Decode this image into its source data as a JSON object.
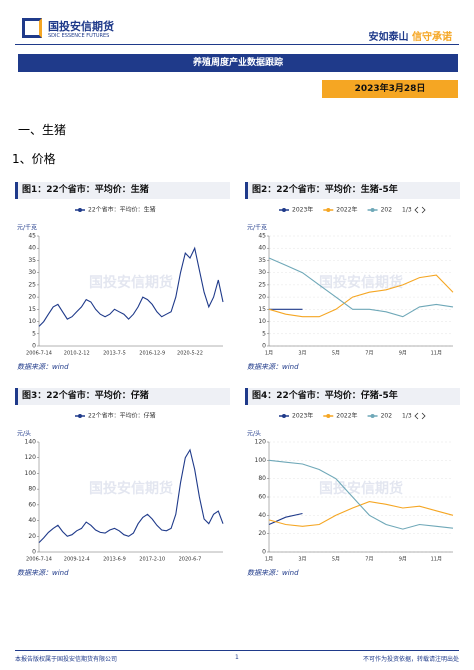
{
  "header": {
    "logo": "国投安信期货",
    "logo_en": "SDIC ESSENCE FUTURES",
    "slogan_a": "安如泰山",
    "slogan_b": "信守承诺",
    "banner": "养殖周度产业数据跟踪",
    "date": "2023年3月28日",
    "watermark": "国投安信期货"
  },
  "section": "一、生猪",
  "subsection": "1、价格",
  "chart_data": [
    {
      "type": "line",
      "title": "图1：22个省市：平均价：生猪",
      "y_label": "元/千克",
      "source": "数据来源：wind",
      "categories": [
        "2006-7-14",
        null,
        null,
        null,
        null,
        null,
        null,
        null,
        "2010-2-12",
        null,
        null,
        null,
        null,
        null,
        null,
        null,
        "2013-7-5",
        null,
        null,
        null,
        null,
        null,
        null,
        null,
        "2016-12-9",
        null,
        null,
        null,
        null,
        null,
        null,
        null,
        "2020-5-22",
        null,
        null,
        null,
        null,
        null,
        null,
        null
      ],
      "series": [
        {
          "name": "22个省市：平均价：生猪",
          "color": "#1f3a8a",
          "values": [
            8,
            10,
            13,
            16,
            17,
            14,
            11,
            12,
            14,
            16,
            19,
            18,
            15,
            13,
            12,
            13,
            15,
            14,
            13,
            11,
            13,
            16,
            20,
            19,
            17,
            14,
            12,
            13,
            14,
            20,
            30,
            38,
            36,
            40,
            31,
            22,
            16,
            20,
            27,
            18
          ]
        }
      ],
      "ylim": [
        0,
        45
      ],
      "yticks": [
        0,
        5,
        10,
        15,
        20,
        25,
        30,
        35,
        40,
        45
      ]
    },
    {
      "type": "line",
      "title": "图2：22个省市：平均价：生猪-5年",
      "y_label": "元/千克",
      "source": "数据来源：wind",
      "legend_page": "1/3",
      "categories": [
        "1月",
        null,
        "3月",
        null,
        "5月",
        null,
        "7月",
        null,
        "9月",
        null,
        "11月",
        null
      ],
      "series": [
        {
          "name": "2023年",
          "color": "#1f3a8a",
          "values": [
            15,
            15,
            15,
            null,
            null,
            null,
            null,
            null,
            null,
            null,
            null,
            null
          ]
        },
        {
          "name": "2022年",
          "color": "#f5a623",
          "values": [
            15,
            13,
            12,
            12,
            15,
            20,
            22,
            23,
            25,
            28,
            29,
            22
          ]
        },
        {
          "name": "202",
          "color": "#6fa8b8",
          "values": [
            36,
            33,
            30,
            25,
            20,
            15,
            15,
            14,
            12,
            16,
            17,
            16
          ]
        }
      ],
      "ylim": [
        0,
        45
      ],
      "yticks": [
        0,
        5,
        10,
        15,
        20,
        25,
        30,
        35,
        40,
        45
      ]
    },
    {
      "type": "line",
      "title": "图3：22个省市：平均价：仔猪",
      "y_label": "元/头",
      "source": "数据来源：wind",
      "categories": [
        "2006-7-14",
        null,
        null,
        null,
        null,
        null,
        null,
        null,
        "2009-12-4",
        null,
        null,
        null,
        null,
        null,
        null,
        null,
        "2013-6-9",
        null,
        null,
        null,
        null,
        null,
        null,
        null,
        "2017-2-10",
        null,
        null,
        null,
        null,
        null,
        null,
        null,
        "2020-6-7",
        null,
        null,
        null,
        null,
        null,
        null,
        null
      ],
      "series": [
        {
          "name": "22个省市：平均价：仔猪",
          "color": "#1f3a8a",
          "values": [
            12,
            18,
            25,
            30,
            34,
            26,
            20,
            22,
            27,
            30,
            38,
            34,
            28,
            25,
            24,
            28,
            30,
            27,
            22,
            20,
            24,
            36,
            44,
            48,
            42,
            34,
            28,
            27,
            30,
            48,
            88,
            120,
            130,
            105,
            70,
            42,
            36,
            48,
            52,
            36
          ]
        }
      ],
      "ylim": [
        0,
        140
      ],
      "yticks": [
        0,
        20,
        40,
        60,
        80,
        100,
        120,
        140
      ]
    },
    {
      "type": "line",
      "title": "图4：22个省市：平均价：仔猪-5年",
      "y_label": "元/头",
      "source": "数据来源：wind",
      "legend_page": "1/3",
      "categories": [
        "1月",
        null,
        "3月",
        null,
        "5月",
        null,
        "7月",
        null,
        "9月",
        null,
        "11月",
        null
      ],
      "series": [
        {
          "name": "2023年",
          "color": "#1f3a8a",
          "values": [
            30,
            38,
            42,
            null,
            null,
            null,
            null,
            null,
            null,
            null,
            null,
            null
          ]
        },
        {
          "name": "2022年",
          "color": "#f5a623",
          "values": [
            35,
            30,
            28,
            30,
            40,
            48,
            55,
            52,
            48,
            50,
            45,
            40
          ]
        },
        {
          "name": "202",
          "color": "#6fa8b8",
          "values": [
            100,
            98,
            96,
            90,
            80,
            60,
            40,
            30,
            25,
            30,
            28,
            26
          ]
        }
      ],
      "ylim": [
        0,
        120
      ],
      "yticks": [
        0,
        20,
        40,
        60,
        80,
        100,
        120
      ]
    }
  ],
  "footer": {
    "left": "本报告版权属于国投安信期货有限公司",
    "page": "1",
    "right": "不可作为投资依据，转载请注明出处"
  }
}
